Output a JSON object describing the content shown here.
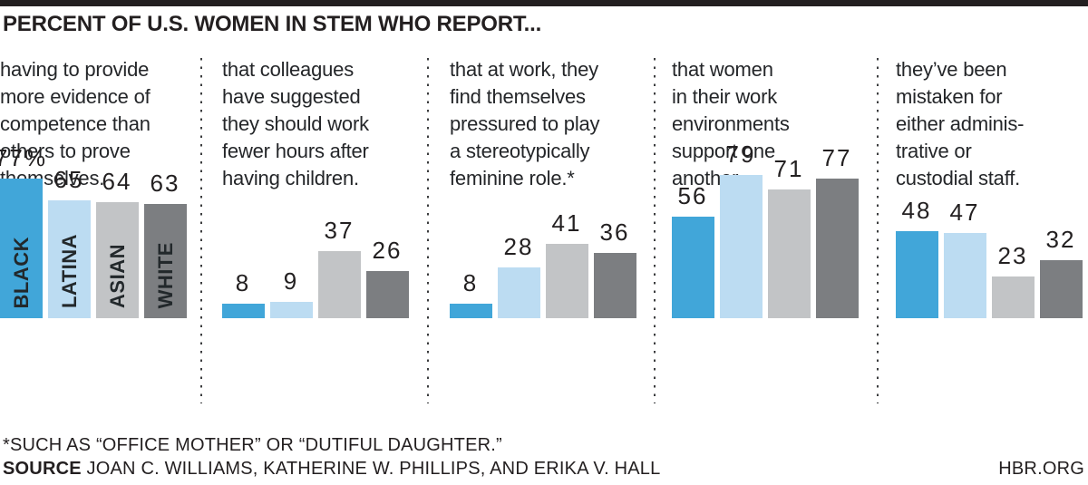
{
  "title": "PERCENT OF U.S. WOMEN IN STEM WHO REPORT...",
  "footnote": "*SUCH AS “OFFICE MOTHER” OR “DUTIFUL DAUGHTER.”",
  "source": {
    "label": "SOURCE",
    "text": "JOAN C. WILLIAMS, KATHERINE W. PHILLIPS, AND ERIKA V. HALL"
  },
  "site": "HBR.ORG",
  "chart_data": {
    "type": "bar",
    "title": "PERCENT OF U.S. WOMEN IN STEM WHO REPORT...",
    "unit": "percent",
    "ylim": [
      0,
      100
    ],
    "grid": false,
    "legend_position": "in-bar-rotated-first-panel",
    "groups": [
      "BLACK",
      "LATINA",
      "ASIAN",
      "WHITE"
    ],
    "group_colors": [
      "#41a6d9",
      "#bcdcf2",
      "#c2c4c6",
      "#7c7e81"
    ],
    "panels": [
      {
        "question": "having to provide\nmore evidence of\ncompetence than\nothers to prove\nthemselves.",
        "values": [
          77,
          65,
          64,
          63
        ],
        "value_labels": [
          "77%",
          "65",
          "64",
          "63"
        ],
        "show_group_labels": true
      },
      {
        "question": "that colleagues\nhave suggested\nthey should work\nfewer hours after\nhaving children.",
        "values": [
          8,
          9,
          37,
          26
        ],
        "value_labels": [
          "8",
          "9",
          "37",
          "26"
        ],
        "show_group_labels": false
      },
      {
        "question": "that at work, they\nfind themselves\npressured to play\na stereotypically\nfeminine role.*",
        "values": [
          8,
          28,
          41,
          36
        ],
        "value_labels": [
          "8",
          "28",
          "41",
          "36"
        ],
        "show_group_labels": false
      },
      {
        "question": "that women\nin their work\nenvironments\nsupport one\nanother.",
        "values": [
          56,
          79,
          71,
          77
        ],
        "value_labels": [
          "56",
          "79",
          "71",
          "77"
        ],
        "show_group_labels": false
      },
      {
        "question": "they’ve been\nmistaken for\neither adminis-\ntrative or\ncustodial staff.",
        "values": [
          48,
          47,
          23,
          32
        ],
        "value_labels": [
          "48",
          "47",
          "23",
          "32"
        ],
        "show_group_labels": false
      }
    ]
  }
}
